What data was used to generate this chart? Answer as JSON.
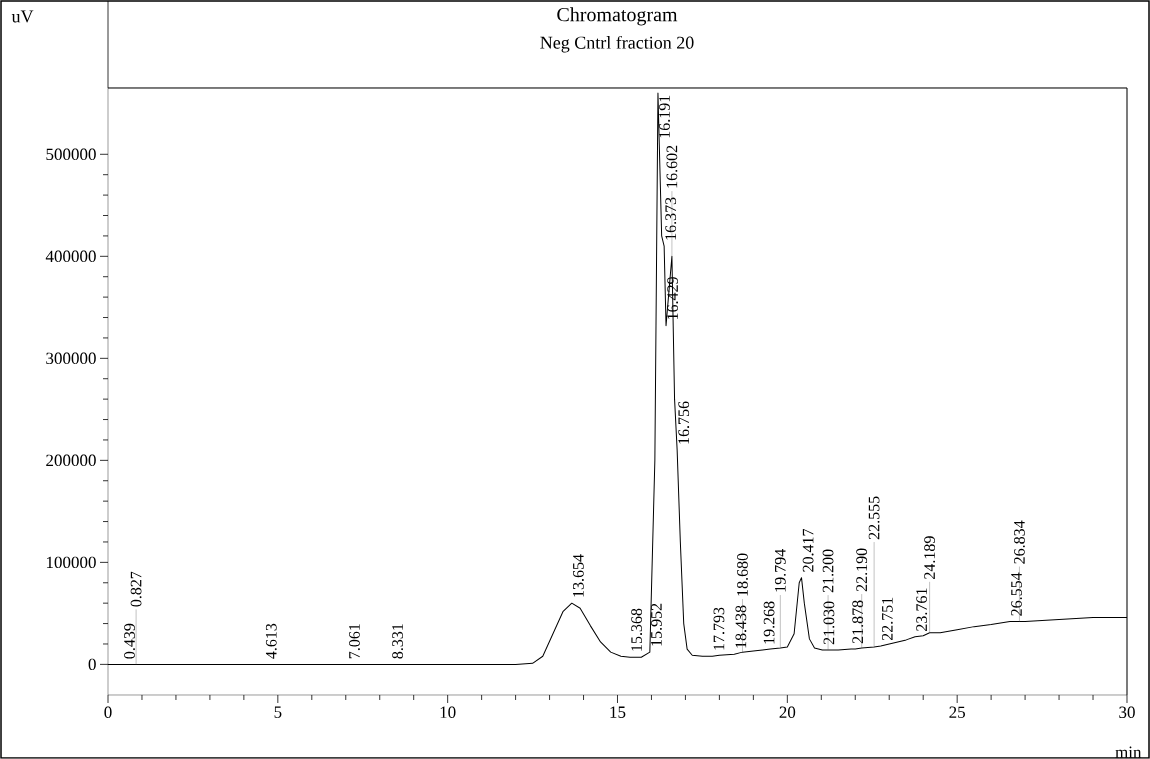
{
  "chart_data": {
    "type": "line",
    "title": "Chromatogram",
    "subtitle": "Neg Cntrl fraction 20",
    "xlabel": "min",
    "ylabel": "uV",
    "series": [
      {
        "color": "#000000",
        "x": [
          0,
          0.439,
          0.827,
          2,
          4,
          4.613,
          6,
          7.061,
          8,
          8.331,
          10,
          12,
          12.5,
          12.8,
          13.1,
          13.4,
          13.654,
          13.9,
          14.2,
          14.5,
          14.8,
          15.1,
          15.368,
          15.7,
          15.952,
          16.1,
          16.191,
          16.3,
          16.373,
          16.429,
          16.5,
          16.602,
          16.68,
          16.756,
          16.85,
          16.95,
          17.05,
          17.2,
          17.5,
          17.793,
          18,
          18.438,
          18.68,
          19,
          19.268,
          19.5,
          19.794,
          20,
          20.2,
          20.35,
          20.417,
          20.5,
          20.65,
          20.8,
          21.03,
          21.2,
          21.5,
          21.878,
          22,
          22.19,
          22.555,
          22.751,
          23,
          23.5,
          23.761,
          24,
          24.189,
          24.5,
          25,
          25.5,
          26,
          26.554,
          26.834,
          27,
          28,
          29,
          30
        ],
        "values": [
          0,
          0,
          0,
          0,
          0,
          0,
          0,
          0,
          0,
          0,
          0,
          0,
          1000,
          8000,
          30000,
          52000,
          60000,
          55000,
          38000,
          22000,
          12000,
          8000,
          7000,
          7000,
          12000,
          200000,
          560000,
          420000,
          410000,
          332000,
          360000,
          400000,
          260000,
          210000,
          120000,
          40000,
          15000,
          9000,
          8000,
          8000,
          9000,
          10000,
          12000,
          13000,
          14000,
          15000,
          16000,
          17000,
          30000,
          80000,
          85000,
          60000,
          25000,
          16000,
          14000,
          14000,
          14000,
          15000,
          15000,
          16000,
          17000,
          18000,
          20000,
          24000,
          27000,
          28000,
          31000,
          31000,
          34000,
          37000,
          39000,
          42000,
          42000,
          42000,
          44000,
          46000,
          46000
        ]
      }
    ],
    "xlim": [
      0,
      30
    ],
    "ylim": [
      -30000,
      565000
    ],
    "xticks": [
      0,
      5,
      10,
      15,
      20,
      25,
      30
    ],
    "yticks": [
      0,
      100000,
      200000,
      300000,
      400000,
      500000
    ],
    "marker": "none",
    "line_style": "solid",
    "annotations": [
      {
        "text": "0.439",
        "x": 0.439,
        "y": 0
      },
      {
        "text": "0.827",
        "x": 0.827,
        "y": 0
      },
      {
        "text": "4.613",
        "x": 4.613,
        "y": 0
      },
      {
        "text": "7.061",
        "x": 7.061,
        "y": 0
      },
      {
        "text": "8.331",
        "x": 8.331,
        "y": 0
      },
      {
        "text": "13.654",
        "x": 13.654,
        "y": 60000
      },
      {
        "text": "15.368",
        "x": 15.368,
        "y": 7000
      },
      {
        "text": "15.952",
        "x": 15.952,
        "y": 12000
      },
      {
        "text": "16.191",
        "x": 16.191,
        "y": 560000
      },
      {
        "text": "16.373",
        "x": 16.373,
        "y": 410000
      },
      {
        "text": "16.602",
        "x": 16.602,
        "y": 400000
      },
      {
        "text": "16.429",
        "x": 16.429,
        "y": 332000
      },
      {
        "text": "16.756",
        "x": 16.756,
        "y": 210000
      },
      {
        "text": "17.793",
        "x": 17.793,
        "y": 8000
      },
      {
        "text": "18.438",
        "x": 18.438,
        "y": 10000
      },
      {
        "text": "18.680",
        "x": 18.68,
        "y": 12000
      },
      {
        "text": "19.268",
        "x": 19.268,
        "y": 14000
      },
      {
        "text": "19.794",
        "x": 19.794,
        "y": 16000
      },
      {
        "text": "20.417",
        "x": 20.417,
        "y": 85000
      },
      {
        "text": "21.030",
        "x": 21.03,
        "y": 14000
      },
      {
        "text": "21.200",
        "x": 21.2,
        "y": 14000
      },
      {
        "text": "21.878",
        "x": 21.878,
        "y": 15000
      },
      {
        "text": "22.190",
        "x": 22.19,
        "y": 16000
      },
      {
        "text": "22.555",
        "x": 22.555,
        "y": 17000
      },
      {
        "text": "22.751",
        "x": 22.751,
        "y": 18000
      },
      {
        "text": "23.761",
        "x": 23.761,
        "y": 27000
      },
      {
        "text": "24.189",
        "x": 24.189,
        "y": 31000
      },
      {
        "text": "26.554",
        "x": 26.554,
        "y": 42000
      },
      {
        "text": "26.834",
        "x": 26.834,
        "y": 42000
      }
    ]
  }
}
